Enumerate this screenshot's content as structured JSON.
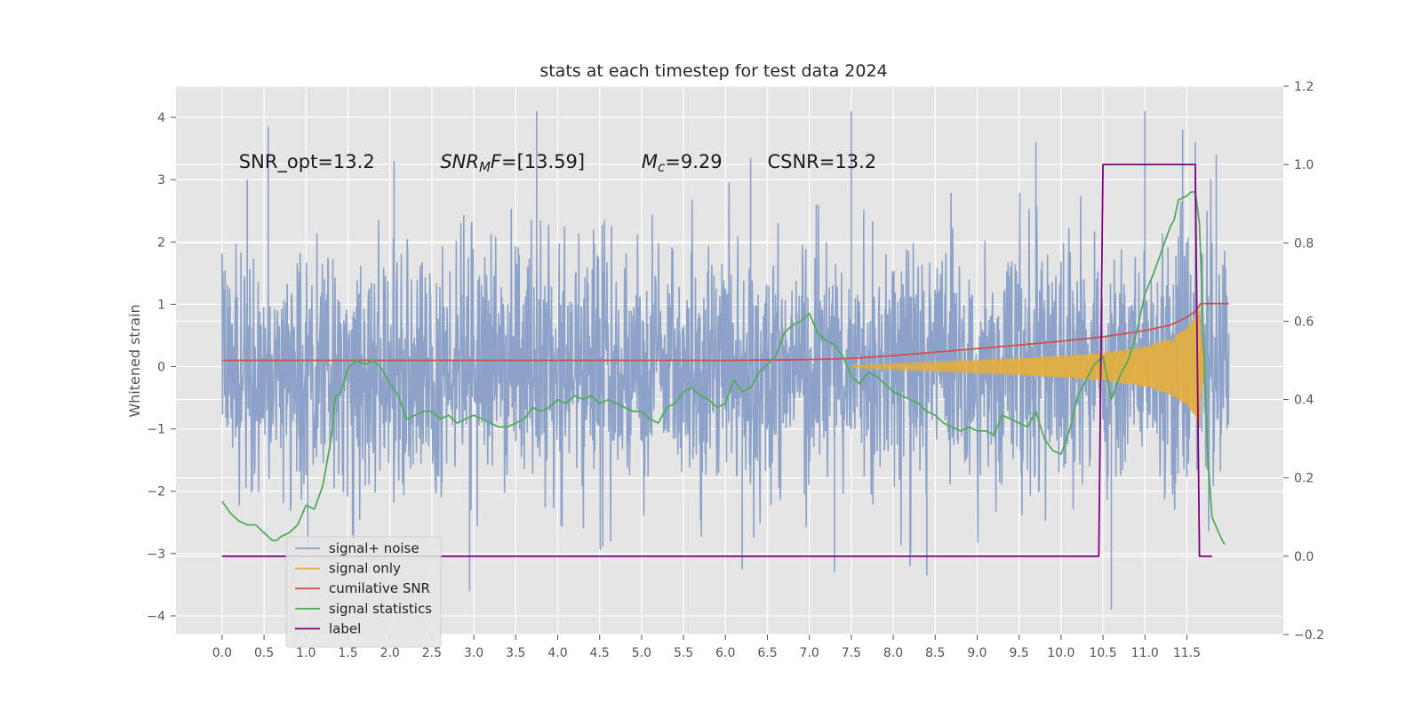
{
  "chart_data": {
    "type": "line",
    "title": "stats at each timestep for test data 2024",
    "ylabel": "Whitened strain",
    "xlim": [
      -0.55,
      12.65
    ],
    "ylim": [
      -4.3,
      4.5
    ],
    "y2lim": [
      -0.2,
      1.2
    ],
    "grid": true,
    "legend_placement": "lower-left",
    "x_ticks": [
      0.0,
      0.5,
      1.0,
      1.5,
      2.0,
      2.5,
      3.0,
      3.5,
      4.0,
      4.5,
      5.0,
      5.5,
      6.0,
      6.5,
      7.0,
      7.5,
      8.0,
      8.5,
      9.0,
      9.5,
      10.0,
      10.5,
      11.0,
      11.5
    ],
    "x_tick_labels": [
      "0.0",
      "0.5",
      "1.0",
      "1.5",
      "2.0",
      "2.5",
      "3.0",
      "3.5",
      "4.0",
      "4.5",
      "5.0",
      "5.5",
      "6.0",
      "6.5",
      "7.0",
      "7.5",
      "8.0",
      "8.5",
      "9.0",
      "9.5",
      "10.0",
      "10.5",
      "11.0",
      "11.5"
    ],
    "y_ticks": [
      -4,
      -3,
      -2,
      -1,
      0,
      1,
      2,
      3,
      4
    ],
    "y_tick_labels": [
      "−4",
      "−3",
      "−2",
      "−1",
      "0",
      "1",
      "2",
      "3",
      "4"
    ],
    "y2_ticks": [
      -0.2,
      0.0,
      0.2,
      0.4,
      0.6,
      0.8,
      1.0,
      1.2
    ],
    "y2_tick_labels": [
      "−0.2",
      "0.0",
      "0.2",
      "0.4",
      "0.6",
      "0.8",
      "1.0",
      "1.2"
    ],
    "annotations": [
      {
        "text": "SNR_opt=13.2",
        "x": 0.2,
        "y": 3.3
      },
      {
        "text": "SNR_MF=[13.59]",
        "x": 2.6,
        "y": 3.3
      },
      {
        "text": "M_c=9.29",
        "x": 5.0,
        "y": 3.3
      },
      {
        "text": "CSNR=13.2",
        "x": 6.5,
        "y": 3.3
      }
    ],
    "series": [
      {
        "name": "signal+ noise",
        "axis": "left",
        "color": "#8da2c8",
        "x_range": [
          0.0,
          12.0
        ],
        "noise_std": 1.0,
        "extreme_spikes": [
          [
            0.3,
            3.0
          ],
          [
            0.55,
            3.85
          ],
          [
            1.02,
            -2.9
          ],
          [
            2.05,
            3.3
          ],
          [
            2.95,
            -3.6
          ],
          [
            3.75,
            4.1
          ],
          [
            6.0,
            1.25
          ],
          [
            6.3,
            3.35
          ],
          [
            6.2,
            -3.25
          ],
          [
            7.5,
            4.1
          ],
          [
            7.3,
            -3.3
          ],
          [
            8.2,
            -3.2
          ],
          [
            8.4,
            -3.35
          ],
          [
            9.7,
            3.6
          ],
          [
            10.6,
            -3.9
          ],
          [
            11.0,
            4.1
          ],
          [
            11.45,
            3.8
          ],
          [
            11.6,
            3.6
          ],
          [
            11.85,
            3.4
          ]
        ]
      },
      {
        "name": "signal only",
        "axis": "left",
        "color": "#e5ae38",
        "x": [
          7.5,
          8.0,
          8.5,
          9.0,
          9.5,
          10.0,
          10.5,
          11.0,
          11.3,
          11.5,
          11.6,
          11.65,
          11.7
        ],
        "envelope": [
          0.02,
          0.05,
          0.08,
          0.1,
          0.13,
          0.17,
          0.22,
          0.32,
          0.45,
          0.62,
          0.8,
          0.95,
          0.0
        ]
      },
      {
        "name": "cumilative SNR",
        "axis": "right",
        "color": "#d0504a",
        "x": [
          0.0,
          6.0,
          7.0,
          7.5,
          8.0,
          8.5,
          9.0,
          9.5,
          10.0,
          10.5,
          11.0,
          11.3,
          11.5,
          11.6,
          11.65,
          11.66,
          12.0
        ],
        "values": [
          0.5,
          0.5,
          0.502,
          0.505,
          0.512,
          0.521,
          0.53,
          0.539,
          0.549,
          0.56,
          0.576,
          0.59,
          0.61,
          0.625,
          0.64,
          0.645,
          0.645
        ]
      },
      {
        "name": "signal statistics",
        "axis": "right",
        "color": "#54aa5b",
        "x": [
          0.0,
          0.1,
          0.2,
          0.3,
          0.4,
          0.5,
          0.6,
          0.65,
          0.7,
          0.8,
          0.9,
          1.0,
          1.1,
          1.2,
          1.25,
          1.3,
          1.35,
          1.4,
          1.5,
          1.55,
          1.6,
          1.7,
          1.8,
          1.9,
          2.0,
          2.1,
          2.2,
          2.3,
          2.4,
          2.5,
          2.6,
          2.7,
          2.8,
          2.9,
          3.0,
          3.1,
          3.2,
          3.3,
          3.4,
          3.5,
          3.6,
          3.7,
          3.8,
          3.9,
          4.0,
          4.1,
          4.2,
          4.3,
          4.4,
          4.5,
          4.6,
          4.7,
          4.8,
          4.9,
          5.0,
          5.1,
          5.2,
          5.3,
          5.4,
          5.5,
          5.6,
          5.7,
          5.8,
          5.9,
          6.0,
          6.1,
          6.2,
          6.3,
          6.4,
          6.5,
          6.6,
          6.7,
          6.8,
          6.9,
          7.0,
          7.1,
          7.2,
          7.3,
          7.4,
          7.5,
          7.6,
          7.7,
          7.8,
          7.9,
          8.0,
          8.1,
          8.2,
          8.3,
          8.4,
          8.5,
          8.6,
          8.7,
          8.8,
          8.9,
          9.0,
          9.1,
          9.2,
          9.3,
          9.4,
          9.5,
          9.6,
          9.7,
          9.8,
          9.9,
          10.0,
          10.1,
          10.2,
          10.3,
          10.4,
          10.5,
          10.6,
          10.7,
          10.8,
          10.9,
          11.0,
          11.1,
          11.2,
          11.3,
          11.35,
          11.4,
          11.5,
          11.55,
          11.6,
          11.65,
          11.7,
          11.75,
          11.8,
          11.9,
          11.95
        ],
        "values": [
          0.14,
          0.11,
          0.09,
          0.08,
          0.08,
          0.06,
          0.04,
          0.04,
          0.05,
          0.06,
          0.08,
          0.13,
          0.12,
          0.18,
          0.24,
          0.3,
          0.41,
          0.41,
          0.48,
          0.49,
          0.5,
          0.49,
          0.5,
          0.48,
          0.44,
          0.41,
          0.35,
          0.36,
          0.37,
          0.37,
          0.35,
          0.36,
          0.34,
          0.35,
          0.36,
          0.35,
          0.34,
          0.33,
          0.33,
          0.34,
          0.35,
          0.38,
          0.37,
          0.38,
          0.4,
          0.39,
          0.41,
          0.4,
          0.41,
          0.39,
          0.4,
          0.39,
          0.38,
          0.37,
          0.37,
          0.35,
          0.34,
          0.38,
          0.39,
          0.42,
          0.43,
          0.41,
          0.4,
          0.38,
          0.39,
          0.45,
          0.42,
          0.43,
          0.47,
          0.49,
          0.51,
          0.57,
          0.59,
          0.6,
          0.62,
          0.57,
          0.55,
          0.54,
          0.51,
          0.46,
          0.44,
          0.47,
          0.46,
          0.44,
          0.42,
          0.41,
          0.4,
          0.39,
          0.37,
          0.36,
          0.34,
          0.33,
          0.32,
          0.33,
          0.32,
          0.32,
          0.31,
          0.36,
          0.35,
          0.34,
          0.33,
          0.37,
          0.3,
          0.27,
          0.26,
          0.32,
          0.41,
          0.45,
          0.49,
          0.51,
          0.4,
          0.46,
          0.5,
          0.57,
          0.67,
          0.72,
          0.78,
          0.84,
          0.86,
          0.91,
          0.92,
          0.93,
          0.93,
          0.85,
          0.55,
          0.25,
          0.1,
          0.05,
          0.03
        ]
      },
      {
        "name": "label",
        "axis": "right",
        "color": "#800080",
        "x": [
          0.0,
          10.45,
          10.5,
          11.6,
          11.65,
          11.8
        ],
        "values": [
          0.0,
          0.0,
          1.0,
          1.0,
          0.0,
          0.0
        ]
      }
    ]
  }
}
